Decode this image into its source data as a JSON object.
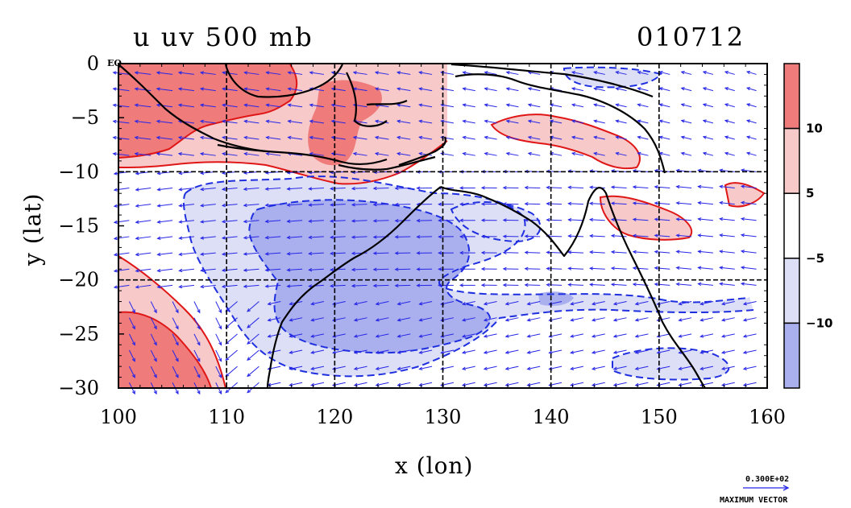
{
  "colors": {
    "red_strong": "#ef7b7b",
    "red_light": "#f7c9c9",
    "blue_light": "#dcdff5",
    "blue_strong": "#aab0ee",
    "vector": "#2626e6",
    "contour_red": "#e01616",
    "contour_blue": "#1f2fe0",
    "coast": "#000000"
  },
  "chart_data": {
    "type": "heatmap",
    "title": "u uv 500 mb",
    "date_label": "010712",
    "xlabel": "x (lon)",
    "ylabel": "y (lat)",
    "xlim": [
      100,
      160
    ],
    "ylim": [
      -30,
      0
    ],
    "x_ticks": [
      "100",
      "110",
      "120",
      "130",
      "140",
      "150",
      "160"
    ],
    "y_ticks": [
      "0",
      "−5",
      "−10",
      "−15",
      "−20",
      "−25",
      "−30"
    ],
    "y_top_suffix": "EQ",
    "grid": true,
    "grid_x": [
      110,
      120,
      130,
      140,
      150
    ],
    "grid_y": [
      -10,
      -20
    ],
    "colorbar": {
      "levels_from_top": [
        "10",
        "5",
        "−5",
        "−10"
      ],
      "bins_from_top": [
        ">10",
        "5 to 10",
        "−5 to 5",
        "−10 to −5",
        "<−10"
      ]
    },
    "vector_reference": {
      "value": "0.300E+02",
      "label": "MAXIMUM VECTOR"
    },
    "regions": [
      {
        "level": ">10",
        "lon": [
          100,
          130
        ],
        "lat": [
          -10,
          0
        ]
      },
      {
        "level": "5 to 10",
        "lon": [
          140,
          150
        ],
        "lat": [
          -8,
          -2
        ]
      },
      {
        "level": "5 to 10",
        "lon": [
          146,
          154
        ],
        "lat": [
          -15,
          -12
        ]
      },
      {
        "level": ">10",
        "lon": [
          100,
          108
        ],
        "lat": [
          -30,
          -20
        ]
      },
      {
        "level": "−10 to −5",
        "lon": [
          105,
          140
        ],
        "lat": [
          -25,
          -10
        ]
      },
      {
        "level": "<−10",
        "lon": [
          112,
          132
        ],
        "lat": [
          -24,
          -14
        ]
      }
    ]
  }
}
